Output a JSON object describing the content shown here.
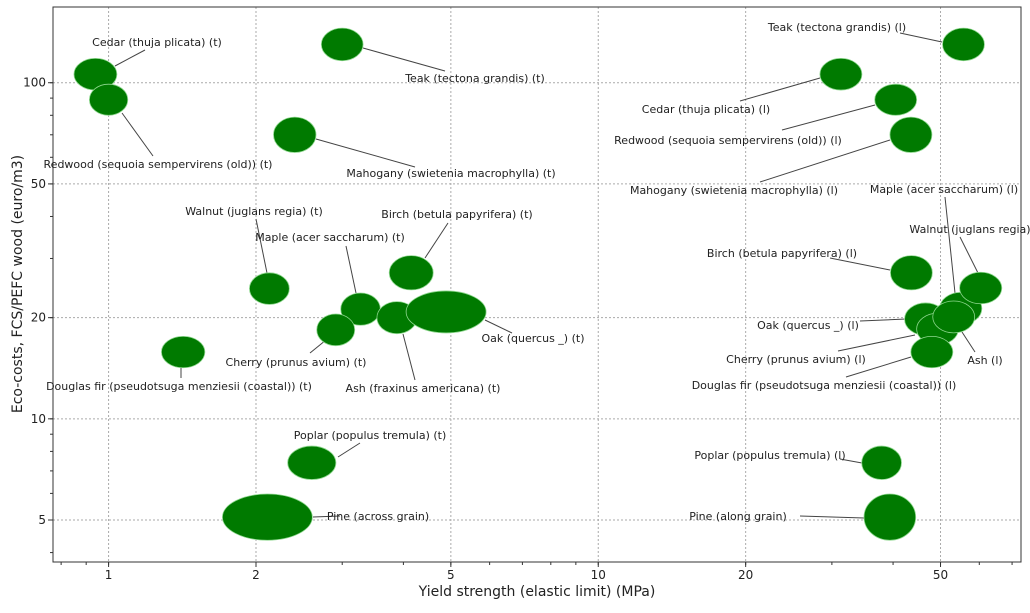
{
  "chart_data": {
    "type": "scatter",
    "subtype": "bubble-ellipse",
    "xlabel": "Yield strength (elastic limit) (MPa)",
    "ylabel": "Eco-costs, FCS/PEFC wood (euro/m3)",
    "xscale": "log",
    "yscale": "log",
    "xlim": [
      0.77,
      73
    ],
    "ylim": [
      3.75,
      168
    ],
    "xticks": [
      1,
      2,
      5,
      10,
      20,
      50
    ],
    "xtick_labels": [
      "1",
      "2",
      "5",
      "10",
      "20",
      "50"
    ],
    "yticks": [
      5,
      10,
      20,
      50,
      100
    ],
    "ytick_labels": [
      "5",
      "10",
      "20",
      "50",
      "100"
    ],
    "grid": true,
    "color": "#007a00",
    "points": [
      {
        "label": "Cedar (thuja plicata) (t)",
        "x": 0.94,
        "y": 106,
        "x_range": [
          0.85,
          1.04
        ],
        "y_range": [
          95,
          118
        ]
      },
      {
        "label": "Redwood (sequoia sempervirens (old)) (t)",
        "x": 1.0,
        "y": 89,
        "x_range": [
          0.91,
          1.09
        ],
        "y_range": [
          80,
          99
        ]
      },
      {
        "label": "Teak (tectona grandis) (t)",
        "x": 3.0,
        "y": 130,
        "x_range": [
          2.72,
          3.31
        ],
        "y_range": [
          116,
          145
        ]
      },
      {
        "label": "Mahogany (swietenia macrophylla) (t)",
        "x": 2.4,
        "y": 70,
        "x_range": [
          2.17,
          2.65
        ],
        "y_range": [
          62,
          79
        ]
      },
      {
        "label": "Walnut (juglans regia) (t)",
        "x": 2.13,
        "y": 24.4,
        "x_range": [
          1.94,
          2.34
        ],
        "y_range": [
          21.9,
          27.2
        ]
      },
      {
        "label": "Birch (betula papyrifera) (t)",
        "x": 4.15,
        "y": 27.2,
        "x_range": [
          3.74,
          4.6
        ],
        "y_range": [
          24.2,
          30.6
        ]
      },
      {
        "label": "Maple (acer saccharum) (t)",
        "x": 3.27,
        "y": 21.2,
        "x_range": [
          2.98,
          3.59
        ],
        "y_range": [
          19.0,
          23.7
        ]
      },
      {
        "label": "Cherry (prunus avium) (t)",
        "x": 2.91,
        "y": 18.4,
        "x_range": [
          2.66,
          3.18
        ],
        "y_range": [
          16.5,
          20.5
        ]
      },
      {
        "label": "Ash (fraxinus americana) (t)",
        "x": 3.88,
        "y": 20.0,
        "x_range": [
          3.53,
          4.26
        ],
        "y_range": [
          17.9,
          22.3
        ]
      },
      {
        "label": "Oak (quercus _) (t)",
        "x": 4.89,
        "y": 20.8,
        "x_range": [
          4.05,
          5.9
        ],
        "y_range": [
          18.0,
          24.0
        ]
      },
      {
        "label": "Douglas fir (pseudotsuga menziesii (coastal)) (t)",
        "x": 1.42,
        "y": 15.8,
        "x_range": [
          1.28,
          1.57
        ],
        "y_range": [
          14.2,
          17.6
        ]
      },
      {
        "label": "Poplar (populus tremula) (t)",
        "x": 2.6,
        "y": 7.4,
        "x_range": [
          2.32,
          2.91
        ],
        "y_range": [
          6.6,
          8.3
        ]
      },
      {
        "label": "Pine (across grain)",
        "x": 2.11,
        "y": 5.1,
        "x_range": [
          1.71,
          2.61
        ],
        "y_range": [
          4.35,
          5.97
        ]
      },
      {
        "label": "Teak (tectona grandis) (l)",
        "x": 55.7,
        "y": 130,
        "x_range": [
          50.5,
          61.5
        ],
        "y_range": [
          116,
          145
        ]
      },
      {
        "label": "Cedar (thuja plicata) (l)",
        "x": 31.3,
        "y": 106,
        "x_range": [
          28.4,
          34.6
        ],
        "y_range": [
          95,
          118
        ]
      },
      {
        "label": "Redwood (sequoia sempervirens (old)) (l)",
        "x": 40.5,
        "y": 89,
        "x_range": [
          36.7,
          44.7
        ],
        "y_range": [
          80,
          99
        ]
      },
      {
        "label": "Mahogany (swietenia macrophylla) (l)",
        "x": 43.5,
        "y": 70,
        "x_range": [
          39.4,
          48.0
        ],
        "y_range": [
          62,
          79
        ]
      },
      {
        "label": "Maple (acer saccharum) (l)",
        "x": 55.0,
        "y": 21.3,
        "x_range": [
          49.8,
          60.7
        ],
        "y_range": [
          19.1,
          23.8
        ]
      },
      {
        "label": "Walnut (juglans regia)",
        "x": 60.4,
        "y": 24.5,
        "x_range": [
          54.7,
          66.7
        ],
        "y_range": [
          22.0,
          27.3
        ]
      },
      {
        "label": "Birch (betula papyrifera) (l)",
        "x": 43.6,
        "y": 27.2,
        "x_range": [
          39.5,
          48.1
        ],
        "y_range": [
          24.2,
          30.6
        ]
      },
      {
        "label": "Oak (quercus _) (l)",
        "x": 46.6,
        "y": 19.8,
        "x_range": [
          42.2,
          51.4
        ],
        "y_range": [
          17.7,
          22.1
        ]
      },
      {
        "label": "Cherry (prunus avium) (l)",
        "x": 49.3,
        "y": 18.5,
        "x_range": [
          44.7,
          54.4
        ],
        "y_range": [
          16.6,
          20.6
        ]
      },
      {
        "label": "Ash (l)",
        "x": 53.2,
        "y": 20.1,
        "x_range": [
          48.2,
          58.7
        ],
        "y_range": [
          18.0,
          22.4
        ]
      },
      {
        "label": "Douglas fir (pseudotsuga menziesii (coastal)) (l)",
        "x": 48.0,
        "y": 15.8,
        "x_range": [
          43.5,
          53.0
        ],
        "y_range": [
          14.2,
          17.6
        ]
      },
      {
        "label": "Poplar (populus tremula) (l)",
        "x": 37.9,
        "y": 7.4,
        "x_range": [
          34.5,
          41.6
        ],
        "y_range": [
          6.6,
          8.3
        ]
      },
      {
        "label": "Pine (along grain)",
        "x": 39.4,
        "y": 5.1,
        "x_range": [
          34.9,
          44.5
        ],
        "y_range": [
          4.35,
          5.97
        ]
      }
    ]
  }
}
